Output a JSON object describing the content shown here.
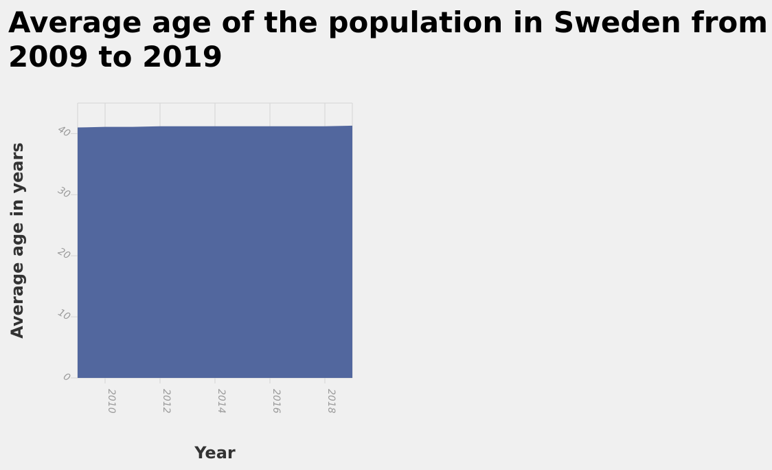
{
  "chart_data": {
    "type": "area",
    "title": "Average age of the population in Sweden from 2009 to 2019",
    "xlabel": "Year",
    "ylabel": "Average age in years",
    "x": [
      2009,
      2010,
      2011,
      2012,
      2013,
      2014,
      2015,
      2016,
      2017,
      2018,
      2019
    ],
    "values": [
      41.0,
      41.1,
      41.1,
      41.2,
      41.2,
      41.2,
      41.2,
      41.2,
      41.2,
      41.2,
      41.3
    ],
    "xlim": [
      2009,
      2019
    ],
    "ylim": [
      0,
      45
    ],
    "x_ticks": [
      "2010",
      "2012",
      "2014",
      "2016",
      "2018"
    ],
    "y_ticks": [
      "0",
      "10",
      "20",
      "30",
      "40"
    ],
    "grid": true,
    "legend": "none",
    "colors": {
      "area": "#52679e",
      "grid": "#d4d4d4",
      "background": "#f0f0f0"
    }
  }
}
